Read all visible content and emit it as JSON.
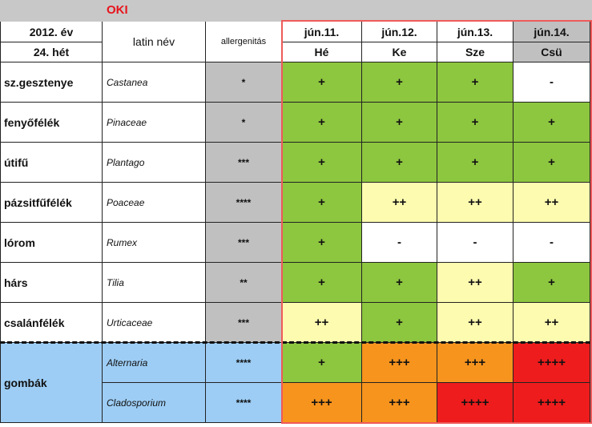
{
  "header": {
    "title": "OKI"
  },
  "table": {
    "columns": {
      "year": "2012. év",
      "week": "24. hét",
      "latin": "latin név",
      "allergenicity": "allergenitás",
      "days": [
        {
          "date": "jún.11.",
          "day": "Hé"
        },
        {
          "date": "jún.12.",
          "day": "Ke"
        },
        {
          "date": "jún.13.",
          "day": "Sze"
        },
        {
          "date": "jún.14.",
          "day": "Csü"
        }
      ]
    },
    "rows": [
      {
        "name": "sz.gesztenye",
        "latin": "Castanea",
        "allergenicity": "*",
        "levels": [
          "+",
          "+",
          "+",
          "-"
        ]
      },
      {
        "name": "fenyőfélék",
        "latin": "Pinaceae",
        "allergenicity": "*",
        "levels": [
          "+",
          "+",
          "+",
          "+"
        ]
      },
      {
        "name": "útifű",
        "latin": "Plantago",
        "allergenicity": "***",
        "levels": [
          "+",
          "+",
          "+",
          "+"
        ]
      },
      {
        "name": "pázsitfűfélék",
        "latin": "Poaceae",
        "allergenicity": "****",
        "levels": [
          "+",
          "++",
          "++",
          "++"
        ]
      },
      {
        "name": "lórom",
        "latin": "Rumex",
        "allergenicity": "***",
        "levels": [
          "+",
          "-",
          "-",
          "-"
        ]
      },
      {
        "name": "hárs",
        "latin": "Tilia",
        "allergenicity": "**",
        "levels": [
          "+",
          "+",
          "++",
          "+"
        ]
      },
      {
        "name": "csalánfélék",
        "latin": "Urticaceae",
        "allergenicity": "***",
        "levels": [
          "++",
          "+",
          "++",
          "++"
        ]
      }
    ],
    "group": {
      "name": "gombák",
      "rows": [
        {
          "latin": "Alternaria",
          "allergenicity": "****",
          "levels": [
            "+",
            "+++",
            "+++",
            "++++"
          ]
        },
        {
          "latin": "Cladosporium",
          "allergenicity": "****",
          "levels": [
            "+++",
            "+++",
            "++++",
            "++++"
          ]
        }
      ]
    }
  }
}
